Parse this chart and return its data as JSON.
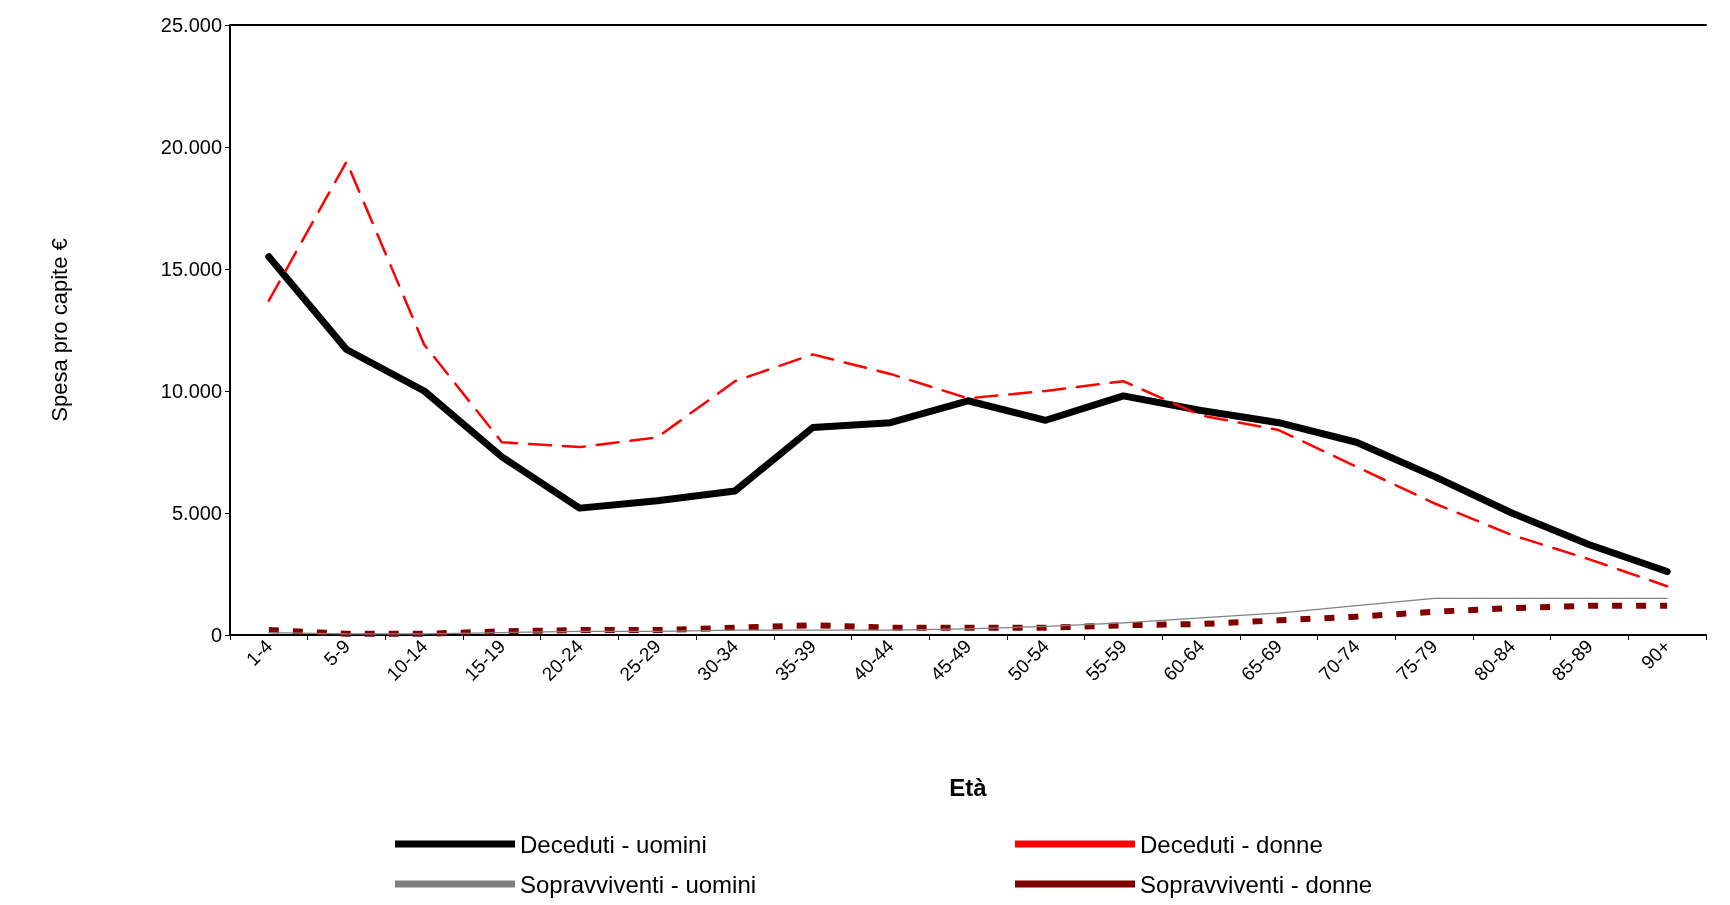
{
  "chart_data": {
    "type": "line",
    "xlabel": "Età",
    "ylabel": "Spesa pro capite €",
    "categories": [
      "1-4",
      "5-9",
      "10-14",
      "15-19",
      "20-24",
      "25-29",
      "30-34",
      "35-39",
      "40-44",
      "45-49",
      "50-54",
      "55-59",
      "60-64",
      "65-69",
      "70-74",
      "75-79",
      "80-84",
      "85-89",
      "90+"
    ],
    "ylim": [
      0,
      25000
    ],
    "yticks": [
      {
        "value": 0,
        "label": "0"
      },
      {
        "value": 5000,
        "label": "5.000"
      },
      {
        "value": 10000,
        "label": "10.000"
      },
      {
        "value": 15000,
        "label": "15.000"
      },
      {
        "value": 20000,
        "label": "20.000"
      },
      {
        "value": 25000,
        "label": "25.000"
      }
    ],
    "grid": false,
    "legend": "bottom",
    "marker": "none",
    "series": [
      {
        "name": "Deceduti - uomini",
        "color": "#000000",
        "line_style": "solid",
        "values": [
          15500,
          11700,
          10000,
          7300,
          5200,
          5500,
          5900,
          8500,
          8700,
          9600,
          8800,
          9800,
          9200,
          8700,
          7900,
          6500,
          5000,
          3700,
          2600
        ]
      },
      {
        "name": "Deceduti - donne",
        "color": "#ff0000",
        "line_style": "dashed",
        "values": [
          13700,
          19400,
          11900,
          7900,
          7700,
          8100,
          10400,
          11500,
          10700,
          9700,
          10000,
          10400,
          9000,
          8400,
          6900,
          5400,
          4100,
          3100,
          2000
        ]
      },
      {
        "name": "Sopravviventi - uomini",
        "color": "#808080",
        "line_style": "solid",
        "values": [
          100,
          50,
          50,
          100,
          150,
          150,
          200,
          200,
          200,
          250,
          350,
          500,
          700,
          900,
          1200,
          1500,
          1500,
          1500,
          1500
        ]
      },
      {
        "name": "Sopravviventi - donne",
        "color": "#800000",
        "line_style": "dotted",
        "values": [
          200,
          50,
          50,
          150,
          200,
          200,
          300,
          400,
          300,
          300,
          300,
          400,
          450,
          600,
          750,
          950,
          1100,
          1200,
          1200
        ]
      }
    ]
  }
}
